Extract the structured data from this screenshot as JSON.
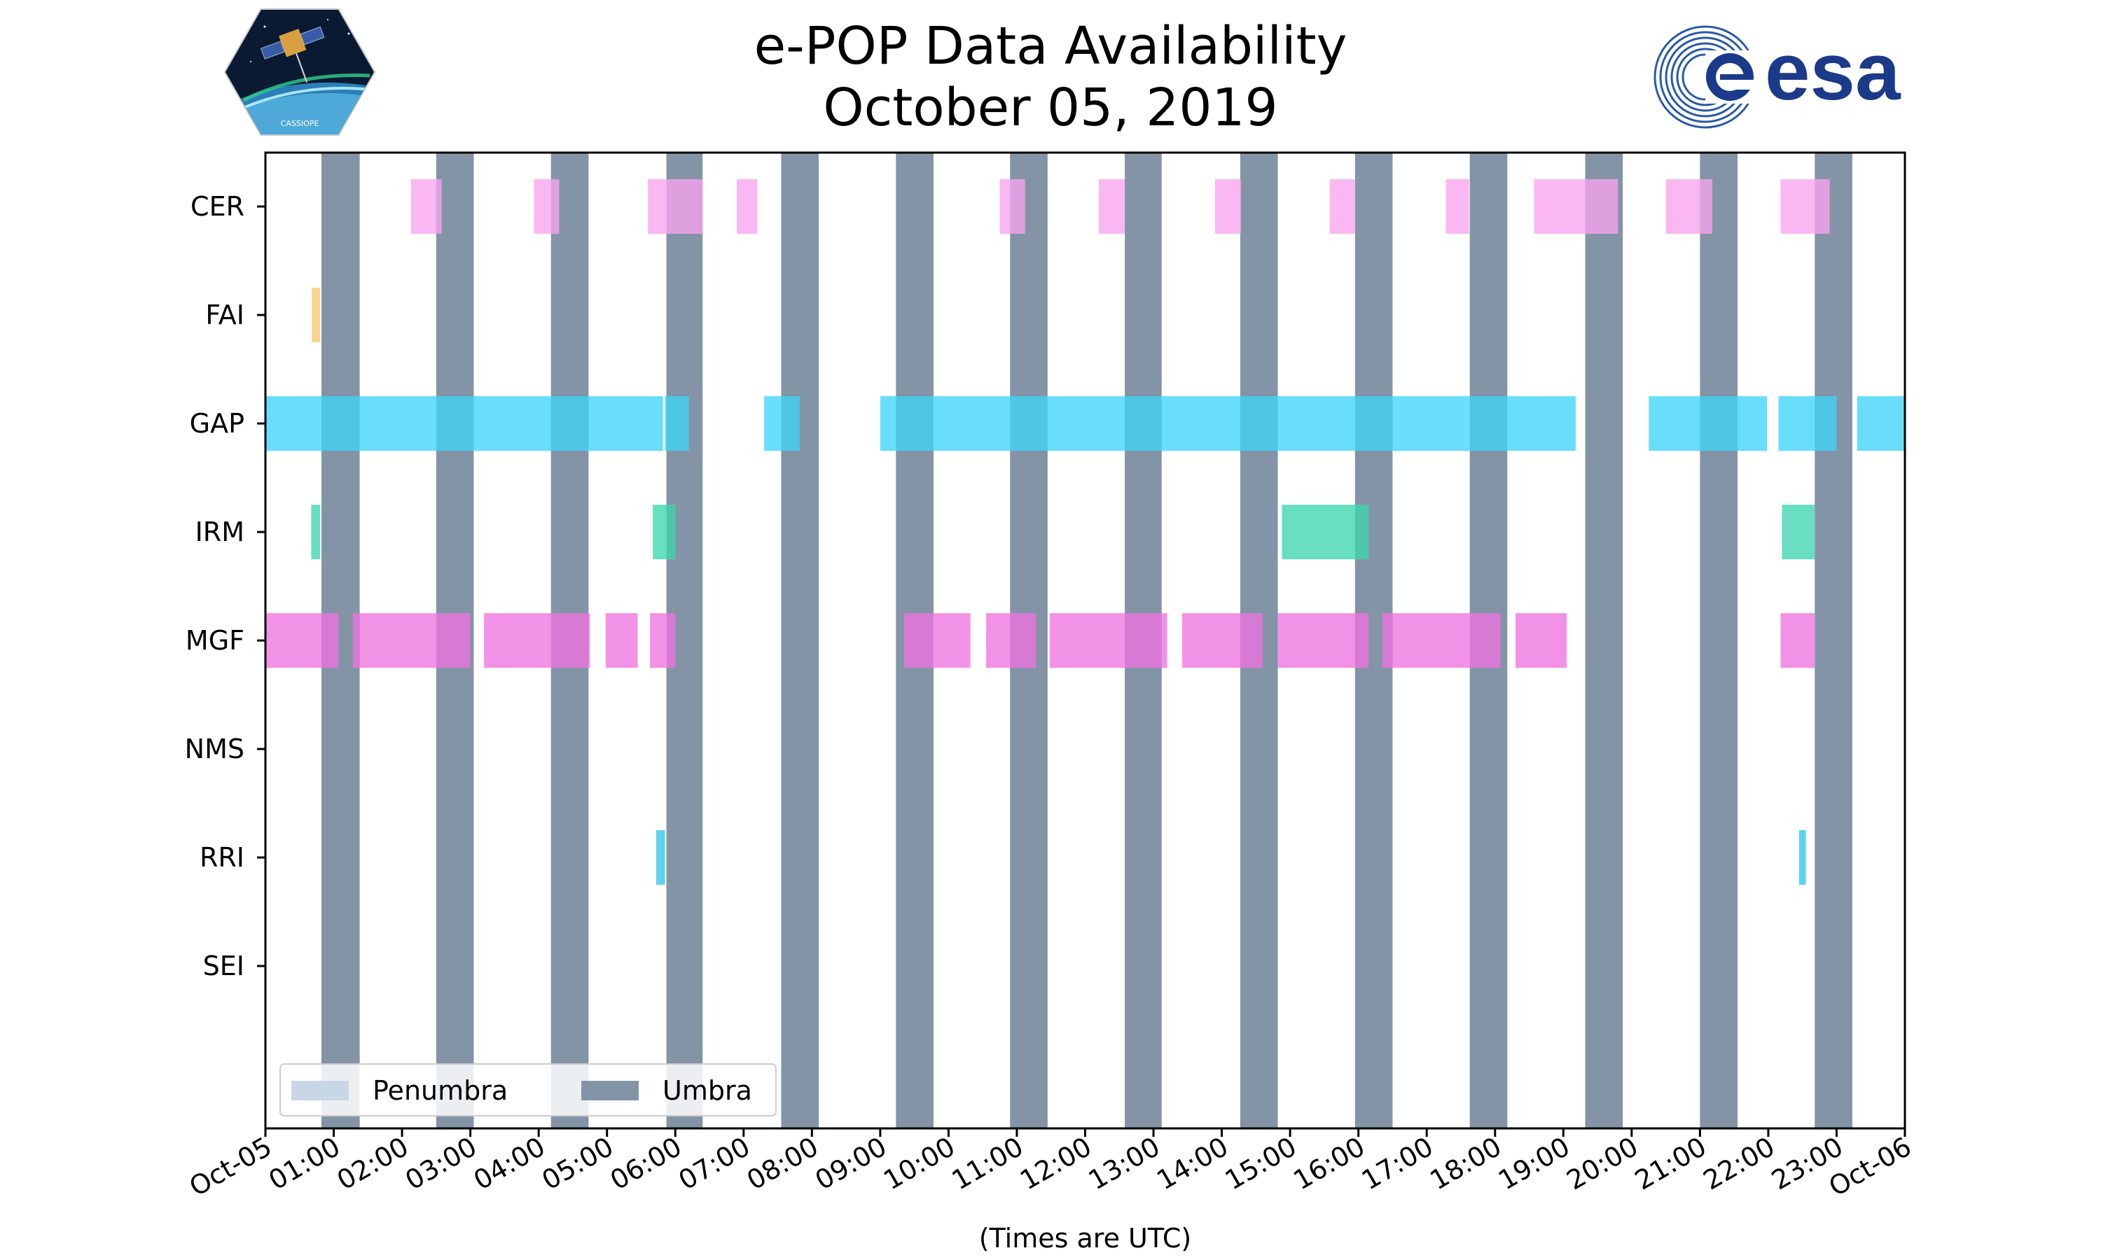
{
  "title_line1": "e-POP Data Availability",
  "title_line2": "October 05, 2019",
  "logos": {
    "left": "CASSIOPE",
    "right": "esa"
  },
  "chart_data": {
    "type": "gantt",
    "title": "e-POP Data Availability October 05, 2019",
    "xlabel": "(Times are UTC)",
    "ylabel": "",
    "x_range_hours": [
      0,
      24
    ],
    "x_ticks": [
      "Oct-05",
      "01:00",
      "02:00",
      "03:00",
      "04:00",
      "05:00",
      "06:00",
      "07:00",
      "08:00",
      "09:00",
      "10:00",
      "11:00",
      "12:00",
      "13:00",
      "14:00",
      "15:00",
      "16:00",
      "17:00",
      "18:00",
      "19:00",
      "20:00",
      "21:00",
      "22:00",
      "23:00",
      "Oct-06"
    ],
    "instruments": [
      "CER",
      "FAI",
      "GAP",
      "IRM",
      "MGF",
      "NMS",
      "RRI",
      "SEI"
    ],
    "colors": {
      "CER": "#f8a4ef",
      "FAI": "#f6c86e",
      "GAP": "#3fd5f8",
      "IRM": "#3dd6ae",
      "MGF": "#ee73e0",
      "NMS": "#888888",
      "RRI": "#2fc7e8",
      "umbra": "#8394a6",
      "penumbra": "#c9d6e6"
    },
    "intervals": {
      "CER": [
        [
          2.13,
          2.58
        ],
        [
          3.93,
          4.3
        ],
        [
          5.6,
          6.4
        ],
        [
          6.9,
          7.2
        ],
        [
          10.75,
          11.12
        ],
        [
          12.2,
          12.58
        ],
        [
          13.9,
          14.28
        ],
        [
          15.58,
          15.95
        ],
        [
          17.28,
          17.62
        ],
        [
          18.57,
          19.8
        ],
        [
          20.5,
          21.18
        ],
        [
          22.18,
          22.9
        ]
      ],
      "FAI": [
        [
          0.68,
          0.8
        ]
      ],
      "GAP": [
        [
          0,
          5.82
        ],
        [
          5.85,
          6.2
        ],
        [
          7.3,
          7.82
        ],
        [
          9.0,
          19.18
        ],
        [
          20.25,
          21.98
        ],
        [
          22.15,
          23.0
        ],
        [
          23.3,
          24.0
        ]
      ],
      "IRM": [
        [
          0.67,
          0.8
        ],
        [
          5.67,
          6.0
        ],
        [
          14.88,
          16.15
        ],
        [
          22.2,
          22.68
        ]
      ],
      "MGF": [
        [
          0,
          1.07
        ],
        [
          1.28,
          3.0
        ],
        [
          3.2,
          4.75
        ],
        [
          4.98,
          5.45
        ],
        [
          5.63,
          6.0
        ],
        [
          9.35,
          10.32
        ],
        [
          10.55,
          11.28
        ],
        [
          11.48,
          13.2
        ],
        [
          13.42,
          14.6
        ],
        [
          14.82,
          16.15
        ],
        [
          16.35,
          18.08
        ],
        [
          18.3,
          19.05
        ],
        [
          22.18,
          22.68
        ]
      ],
      "NMS": [],
      "RRI": [
        [
          5.72,
          5.85
        ],
        [
          22.45,
          22.55
        ]
      ],
      "SEI": []
    },
    "umbra": [
      [
        0.82,
        1.38
      ],
      [
        2.5,
        3.05
      ],
      [
        4.18,
        4.73
      ],
      [
        5.87,
        6.4
      ],
      [
        7.55,
        8.1
      ],
      [
        9.23,
        9.78
      ],
      [
        10.9,
        11.45
      ],
      [
        12.58,
        13.12
      ],
      [
        14.27,
        14.82
      ],
      [
        15.95,
        16.5
      ],
      [
        17.63,
        18.18
      ],
      [
        19.32,
        19.87
      ],
      [
        21.0,
        21.55
      ],
      [
        22.68,
        23.23
      ]
    ],
    "penumbra": [],
    "legend": {
      "position": "bottom-left",
      "entries": [
        "Penumbra",
        "Umbra"
      ]
    }
  }
}
